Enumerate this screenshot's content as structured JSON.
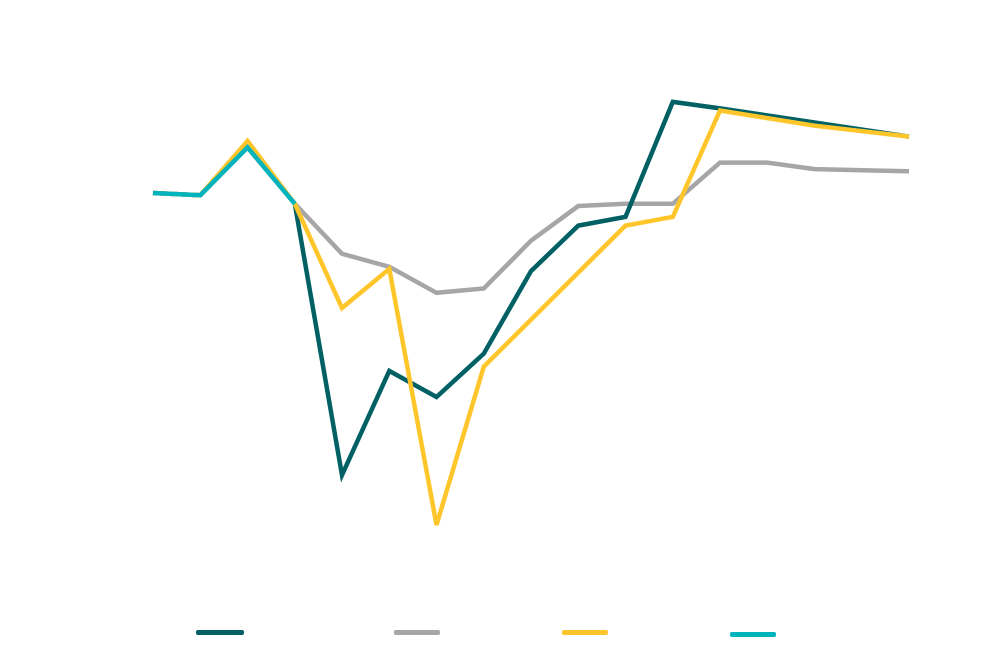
{
  "chart_data": {
    "type": "line",
    "title": "",
    "xlabel": "",
    "ylabel": "",
    "x": [
      1,
      2,
      3,
      4,
      5,
      6,
      7,
      8,
      9,
      10,
      11,
      12,
      13,
      14,
      15,
      16,
      17
    ],
    "ylim": [
      -12,
      3
    ],
    "grid": false,
    "legend_position": "bottom",
    "series": [
      {
        "name": "",
        "color": "#006064",
        "values": [
          0.0,
          -0.05,
          1.1,
          -0.25,
          -6.5,
          -4.1,
          -4.7,
          -3.7,
          -1.8,
          -0.75,
          -0.55,
          2.1,
          1.95,
          null,
          null,
          null,
          1.3
        ]
      },
      {
        "name": "",
        "color": "#A6A6A6",
        "values": [
          0.0,
          -0.05,
          1.05,
          -0.25,
          -1.4,
          -1.7,
          -2.3,
          -2.2,
          -1.1,
          -0.3,
          -0.25,
          -0.25,
          0.7,
          0.7,
          0.55,
          null,
          0.5
        ]
      },
      {
        "name": "",
        "color": "#FFC62C",
        "values": [
          0.0,
          -0.05,
          1.2,
          -0.25,
          -2.65,
          -1.75,
          -7.65,
          -4.0,
          null,
          null,
          -0.75,
          -0.55,
          1.9,
          null,
          1.55,
          null,
          1.3
        ]
      },
      {
        "name": "",
        "color": "#00B3BD",
        "values": [
          0.0,
          -0.05,
          1.05,
          -0.25,
          null,
          null,
          null,
          null,
          null,
          null,
          null,
          null,
          null,
          null,
          null,
          null,
          null
        ]
      }
    ]
  }
}
